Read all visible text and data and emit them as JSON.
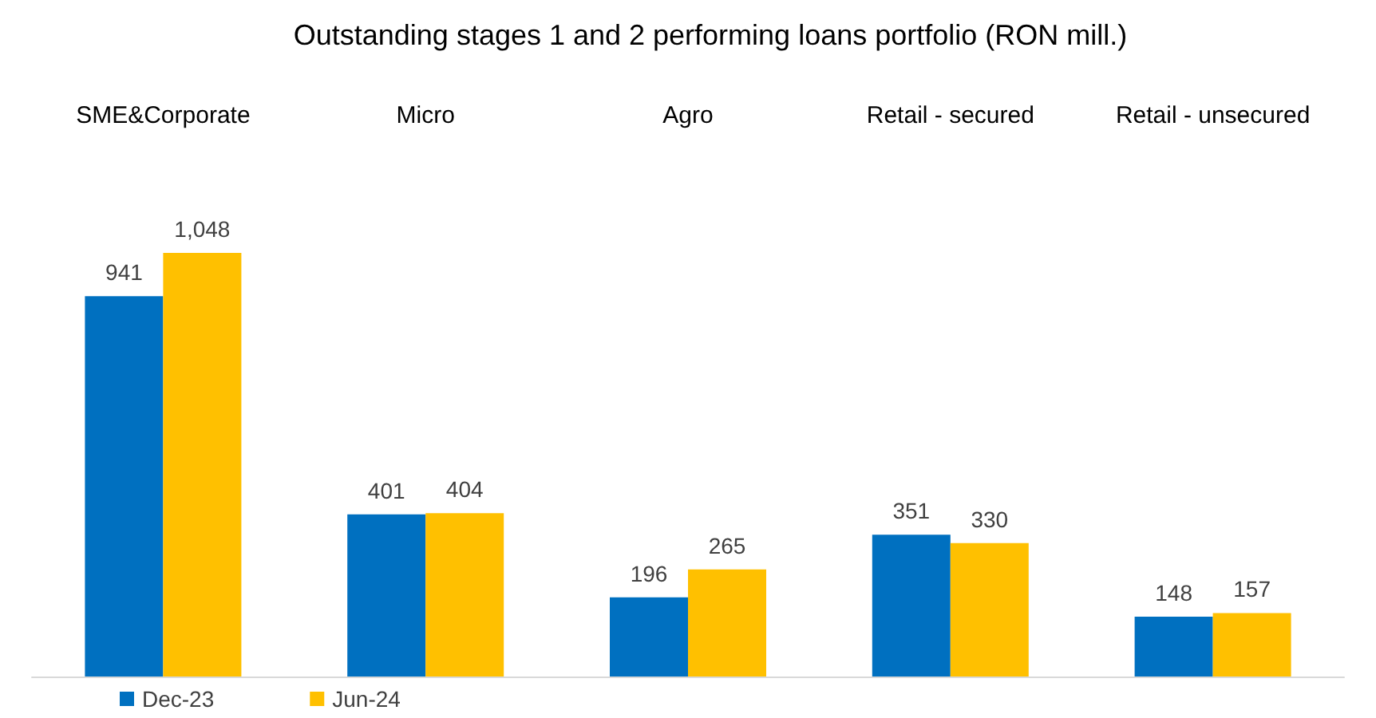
{
  "chart_data": {
    "type": "bar",
    "title": "Outstanding stages 1 and 2 performing loans portfolio (RON mill.)",
    "categories": [
      "SME&Corporate",
      "Micro",
      "Agro",
      "Retail - secured",
      "Retail - unsecured"
    ],
    "series": [
      {
        "name": "Dec-23",
        "color": "#0070c0",
        "values": [
          941,
          401,
          196,
          351,
          148
        ],
        "value_labels": [
          "941",
          "401",
          "196",
          "351",
          "148"
        ]
      },
      {
        "name": "Jun-24",
        "color": "#ffc000",
        "values": [
          1048,
          404,
          265,
          330,
          157
        ],
        "value_labels": [
          "1,048",
          "404",
          "265",
          "330",
          "157"
        ]
      }
    ],
    "legend": "bottom left"
  }
}
